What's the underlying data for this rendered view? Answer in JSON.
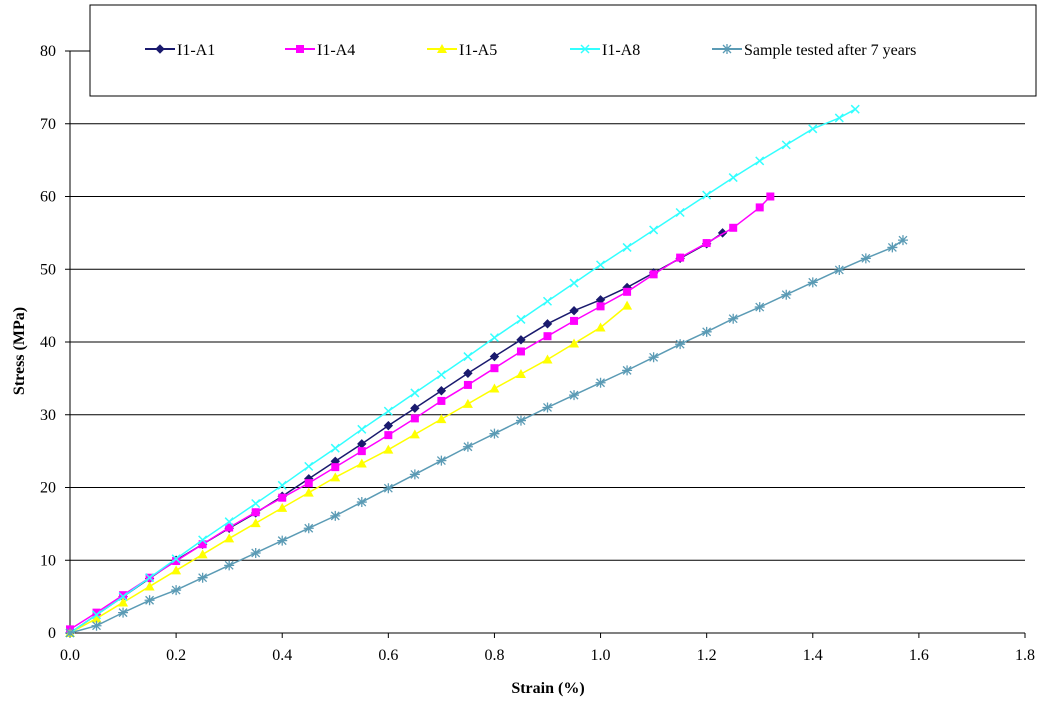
{
  "chart_data": {
    "type": "line",
    "title": "",
    "xlabel": "Strain (%)",
    "ylabel": "Stress (MPa)",
    "xlim": [
      0,
      1.8
    ],
    "ylim": [
      0,
      80
    ],
    "x_ticks": [
      0.0,
      0.2,
      0.4,
      0.6,
      0.8,
      1.0,
      1.2,
      1.4,
      1.6,
      1.8
    ],
    "x_tick_labels": [
      "0.0",
      "0.2",
      "0.4",
      "0.6",
      "0.8",
      "1.0",
      "1.2",
      "1.4",
      "1.6",
      "1.8"
    ],
    "y_ticks": [
      0,
      10,
      20,
      30,
      40,
      50,
      60,
      70,
      80
    ],
    "y_tick_labels": [
      "0",
      "10",
      "20",
      "30",
      "40",
      "50",
      "60",
      "70",
      "80"
    ],
    "grid": "horizontal major gridlines",
    "legend_position": "top, boxed",
    "series": [
      {
        "name": "I1-A1",
        "color": "#1a1a6e",
        "marker": "diamond",
        "x": [
          0.0,
          0.05,
          0.1,
          0.15,
          0.2,
          0.25,
          0.3,
          0.35,
          0.4,
          0.45,
          0.5,
          0.55,
          0.6,
          0.65,
          0.7,
          0.75,
          0.8,
          0.85,
          0.9,
          0.95,
          1.0,
          1.05,
          1.1,
          1.15,
          1.2,
          1.23
        ],
        "y": [
          0.0,
          2.5,
          5.0,
          7.5,
          10.0,
          12.2,
          14.4,
          16.5,
          18.8,
          21.2,
          23.6,
          26.0,
          28.5,
          30.9,
          33.3,
          35.7,
          38.0,
          40.3,
          42.5,
          44.3,
          45.8,
          47.5,
          49.5,
          51.5,
          53.5,
          55.0
        ]
      },
      {
        "name": "I1-A4",
        "color": "#ff00ff",
        "marker": "square",
        "x": [
          0.0,
          0.05,
          0.1,
          0.15,
          0.2,
          0.25,
          0.3,
          0.35,
          0.4,
          0.45,
          0.5,
          0.55,
          0.6,
          0.65,
          0.7,
          0.75,
          0.8,
          0.85,
          0.9,
          0.95,
          1.0,
          1.05,
          1.1,
          1.15,
          1.2,
          1.25,
          1.3,
          1.32
        ],
        "y": [
          0.5,
          2.8,
          5.2,
          7.6,
          9.9,
          12.2,
          14.5,
          16.6,
          18.6,
          20.6,
          22.8,
          25.0,
          27.2,
          29.5,
          31.9,
          34.1,
          36.4,
          38.7,
          40.8,
          42.9,
          44.9,
          46.9,
          49.3,
          51.6,
          53.6,
          55.7,
          58.5,
          60.0
        ]
      },
      {
        "name": "I1-A5",
        "color": "#ffff00",
        "marker": "triangle",
        "x": [
          0.0,
          0.05,
          0.1,
          0.15,
          0.2,
          0.25,
          0.3,
          0.35,
          0.4,
          0.45,
          0.5,
          0.55,
          0.6,
          0.65,
          0.7,
          0.75,
          0.8,
          0.85,
          0.9,
          0.95,
          1.0,
          1.05
        ],
        "y": [
          0.0,
          2.0,
          4.2,
          6.4,
          8.6,
          10.8,
          13.0,
          15.1,
          17.2,
          19.3,
          21.4,
          23.3,
          25.2,
          27.3,
          29.4,
          31.5,
          33.6,
          35.6,
          37.6,
          39.8,
          42.0,
          45.0
        ]
      },
      {
        "name": "I1-A8",
        "color": "#33ffff",
        "marker": "x",
        "x": [
          0.0,
          0.05,
          0.1,
          0.15,
          0.2,
          0.25,
          0.3,
          0.35,
          0.4,
          0.45,
          0.5,
          0.55,
          0.6,
          0.65,
          0.7,
          0.75,
          0.8,
          0.85,
          0.9,
          0.95,
          1.0,
          1.05,
          1.1,
          1.15,
          1.2,
          1.25,
          1.3,
          1.35,
          1.4,
          1.45,
          1.48
        ],
        "y": [
          0.0,
          2.5,
          5.0,
          7.6,
          10.2,
          12.8,
          15.3,
          17.8,
          20.3,
          22.9,
          25.4,
          28.0,
          30.5,
          33.0,
          35.5,
          38.0,
          40.6,
          43.1,
          45.6,
          48.1,
          50.6,
          53.0,
          55.4,
          57.8,
          60.2,
          62.6,
          64.9,
          67.1,
          69.3,
          70.8,
          72.0
        ]
      },
      {
        "name": "Sample tested after 7 years",
        "color": "#5b9bb5",
        "marker": "asterisk",
        "x": [
          0.0,
          0.05,
          0.1,
          0.15,
          0.2,
          0.25,
          0.3,
          0.35,
          0.4,
          0.45,
          0.5,
          0.55,
          0.6,
          0.65,
          0.7,
          0.75,
          0.8,
          0.85,
          0.9,
          0.95,
          1.0,
          1.05,
          1.1,
          1.15,
          1.2,
          1.25,
          1.3,
          1.35,
          1.4,
          1.45,
          1.5,
          1.55,
          1.57
        ],
        "y": [
          0.0,
          1.0,
          2.8,
          4.5,
          5.9,
          7.6,
          9.3,
          11.0,
          12.7,
          14.4,
          16.1,
          18.0,
          19.9,
          21.8,
          23.7,
          25.6,
          27.4,
          29.2,
          31.0,
          32.7,
          34.4,
          36.1,
          37.9,
          39.7,
          41.4,
          43.2,
          44.8,
          46.5,
          48.2,
          49.9,
          51.5,
          53.0,
          54.0
        ]
      }
    ]
  }
}
